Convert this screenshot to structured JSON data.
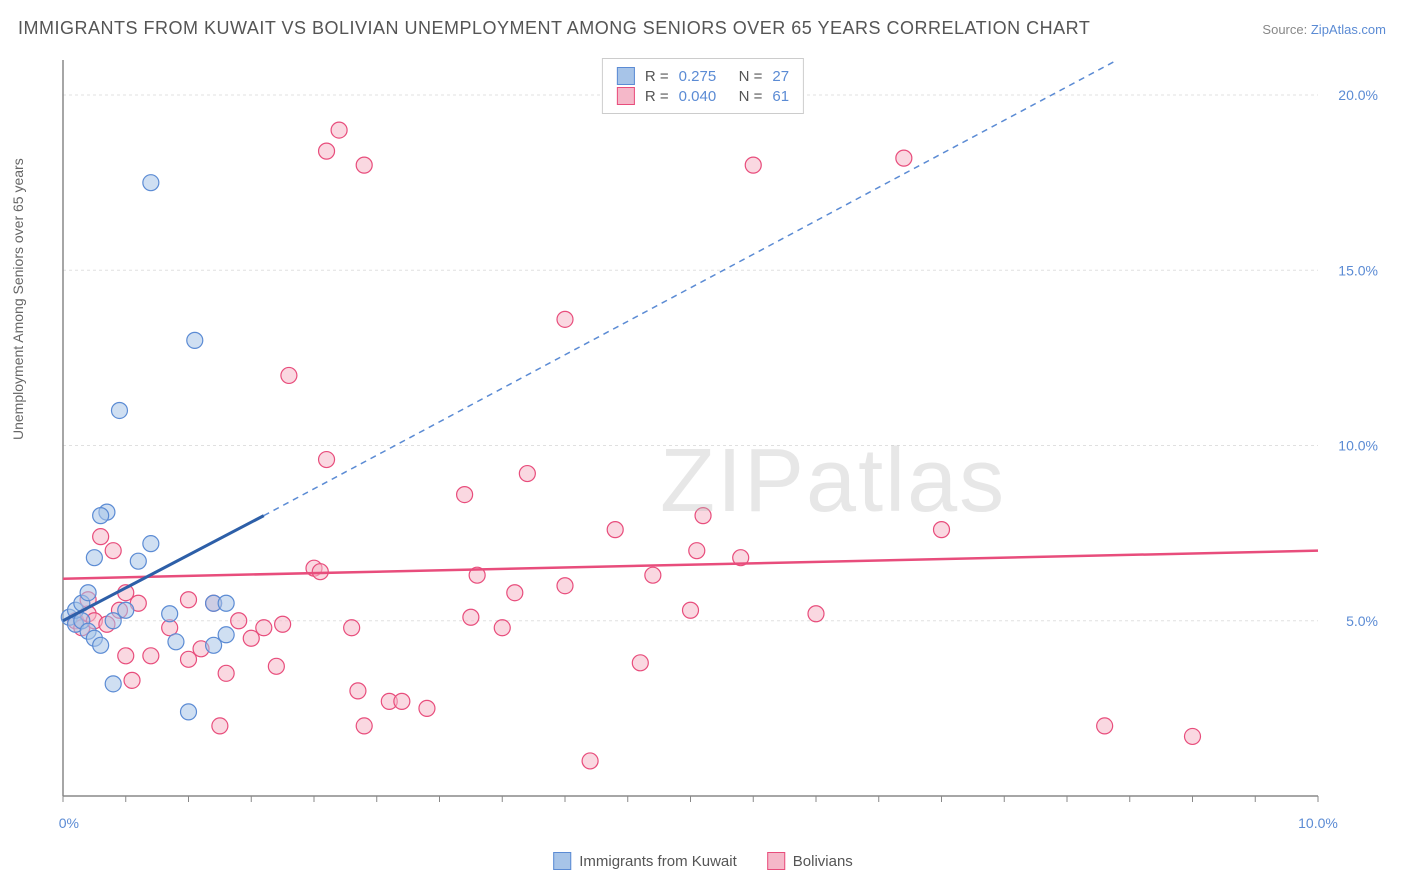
{
  "title": "IMMIGRANTS FROM KUWAIT VS BOLIVIAN UNEMPLOYMENT AMONG SENIORS OVER 65 YEARS CORRELATION CHART",
  "source_label": "Source:",
  "source_name": "ZipAtlas.com",
  "watermark_a": "ZIP",
  "watermark_b": "atlas",
  "y_axis_label": "Unemployment Among Seniors over 65 years",
  "chart": {
    "type": "scatter",
    "background_color": "#ffffff",
    "grid_color": "#e0e0e0",
    "axis_color": "#888888",
    "xlim": [
      0,
      10
    ],
    "ylim": [
      0,
      21
    ],
    "x_ticks": [
      0,
      10
    ],
    "x_tick_labels": [
      "0.0%",
      "10.0%"
    ],
    "y_ticks": [
      5,
      10,
      15,
      20
    ],
    "y_tick_labels": [
      "5.0%",
      "10.0%",
      "15.0%",
      "20.0%"
    ],
    "tick_label_color": "#5b8bd4",
    "tick_fontsize": 14
  },
  "series": {
    "blue": {
      "label": "Immigrants from Kuwait",
      "R_label": "R  =",
      "R": "0.275",
      "N_label": "N  =",
      "N": "27",
      "fill_color": "#a7c4e8",
      "stroke_color": "#5b8bd4",
      "marker_radius": 8,
      "marker_opacity": 0.55,
      "points": [
        [
          0.05,
          5.1
        ],
        [
          0.1,
          4.9
        ],
        [
          0.1,
          5.3
        ],
        [
          0.15,
          5.0
        ],
        [
          0.15,
          5.5
        ],
        [
          0.2,
          4.7
        ],
        [
          0.2,
          5.8
        ],
        [
          0.25,
          4.5
        ],
        [
          0.25,
          6.8
        ],
        [
          0.3,
          4.3
        ],
        [
          0.35,
          8.1
        ],
        [
          0.4,
          3.2
        ],
        [
          0.4,
          5.0
        ],
        [
          0.45,
          11.0
        ],
        [
          0.6,
          6.7
        ],
        [
          0.7,
          7.2
        ],
        [
          0.7,
          17.5
        ],
        [
          0.85,
          5.2
        ],
        [
          0.9,
          4.4
        ],
        [
          1.0,
          2.4
        ],
        [
          1.05,
          13.0
        ],
        [
          1.2,
          5.5
        ],
        [
          1.2,
          4.3
        ],
        [
          1.3,
          5.5
        ],
        [
          1.3,
          4.6
        ],
        [
          0.3,
          8.0
        ],
        [
          0.5,
          5.3
        ]
      ],
      "trend_solid": {
        "x1": 0.0,
        "y1": 5.0,
        "x2": 1.6,
        "y2": 8.0,
        "color": "#2d5fa8",
        "width": 3
      },
      "trend_dashed": {
        "x1": 1.6,
        "y1": 8.0,
        "x2": 8.4,
        "y2": 21.0,
        "color": "#5b8bd4",
        "width": 1.5,
        "dash": "6,5"
      }
    },
    "pink": {
      "label": "Bolivians",
      "R_label": "R  =",
      "R": "0.040",
      "N_label": "N  =",
      "N": "61",
      "fill_color": "#f5b8c9",
      "stroke_color": "#e84d7c",
      "marker_radius": 8,
      "marker_opacity": 0.55,
      "points": [
        [
          0.1,
          5.0
        ],
        [
          0.15,
          4.8
        ],
        [
          0.2,
          5.2
        ],
        [
          0.2,
          5.6
        ],
        [
          0.25,
          5.0
        ],
        [
          0.3,
          7.4
        ],
        [
          0.35,
          4.9
        ],
        [
          0.4,
          7.0
        ],
        [
          0.45,
          5.3
        ],
        [
          0.5,
          5.8
        ],
        [
          0.55,
          3.3
        ],
        [
          0.6,
          5.5
        ],
        [
          0.7,
          4.0
        ],
        [
          0.85,
          4.8
        ],
        [
          1.0,
          3.9
        ],
        [
          1.0,
          5.6
        ],
        [
          1.1,
          4.2
        ],
        [
          1.2,
          5.5
        ],
        [
          1.25,
          2.0
        ],
        [
          1.3,
          3.5
        ],
        [
          1.4,
          5.0
        ],
        [
          1.5,
          4.5
        ],
        [
          1.6,
          4.8
        ],
        [
          1.7,
          3.7
        ],
        [
          1.75,
          4.9
        ],
        [
          1.8,
          12.0
        ],
        [
          2.0,
          6.5
        ],
        [
          2.05,
          6.4
        ],
        [
          2.1,
          9.6
        ],
        [
          2.1,
          18.4
        ],
        [
          2.2,
          19.0
        ],
        [
          2.3,
          4.8
        ],
        [
          2.35,
          3.0
        ],
        [
          2.4,
          2.0
        ],
        [
          2.4,
          18.0
        ],
        [
          2.6,
          2.7
        ],
        [
          2.7,
          2.7
        ],
        [
          3.2,
          8.6
        ],
        [
          3.25,
          5.1
        ],
        [
          3.3,
          6.3
        ],
        [
          3.5,
          4.8
        ],
        [
          3.6,
          5.8
        ],
        [
          3.7,
          9.2
        ],
        [
          4.0,
          6.0
        ],
        [
          4.0,
          13.6
        ],
        [
          4.2,
          1.0
        ],
        [
          4.4,
          7.6
        ],
        [
          4.6,
          3.8
        ],
        [
          4.7,
          6.3
        ],
        [
          5.0,
          5.3
        ],
        [
          5.05,
          7.0
        ],
        [
          5.1,
          8.0
        ],
        [
          5.4,
          6.8
        ],
        [
          5.5,
          18.0
        ],
        [
          6.0,
          5.2
        ],
        [
          6.7,
          18.2
        ],
        [
          7.0,
          7.6
        ],
        [
          8.3,
          2.0
        ],
        [
          9.0,
          1.7
        ],
        [
          2.9,
          2.5
        ],
        [
          0.5,
          4.0
        ]
      ],
      "trend": {
        "x1": 0.0,
        "y1": 6.2,
        "x2": 10.0,
        "y2": 7.0,
        "color": "#e84d7c",
        "width": 2.5
      }
    }
  }
}
